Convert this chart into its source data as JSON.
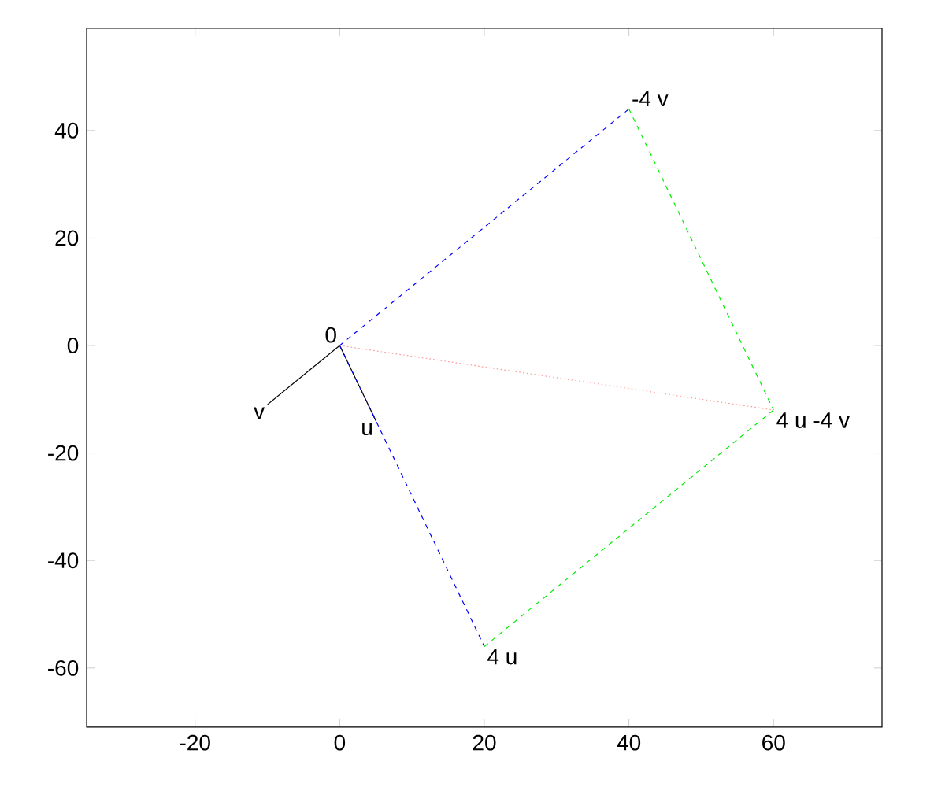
{
  "chart_data": {
    "type": "line",
    "series": [
      {
        "color": "#000000",
        "x": [
          0,
          5
        ],
        "values": [
          0,
          -14
        ],
        "line_style": "solid"
      },
      {
        "color": "#000000",
        "x": [
          0,
          -10
        ],
        "values": [
          0,
          -11
        ],
        "line_style": "solid"
      },
      {
        "color": "#0000ff",
        "x": [
          0,
          20
        ],
        "values": [
          0,
          -56
        ],
        "line_style": "dashed"
      },
      {
        "color": "#0000ff",
        "x": [
          0,
          40
        ],
        "values": [
          0,
          44
        ],
        "line_style": "dashed"
      },
      {
        "color": "#00ee00",
        "x": [
          20,
          60
        ],
        "values": [
          -56,
          -12
        ],
        "line_style": "dashed"
      },
      {
        "color": "#00ee00",
        "x": [
          40,
          60
        ],
        "values": [
          44,
          -12
        ],
        "line_style": "dashed"
      },
      {
        "color": "#ff9999",
        "x": [
          0,
          60
        ],
        "values": [
          0,
          -12
        ],
        "line_style": "dotted"
      }
    ],
    "annotations": [
      {
        "text": "0",
        "x": 0,
        "y": 0
      },
      {
        "text": "v",
        "x": -10,
        "y": -11
      },
      {
        "text": "u",
        "x": 5,
        "y": -14
      },
      {
        "text": "4 u",
        "x": 20,
        "y": -56
      },
      {
        "text": "-4 v",
        "x": 40,
        "y": 44
      },
      {
        "text": "4 u -4 v",
        "x": 60,
        "y": -12
      }
    ],
    "xlim": [
      -35,
      75
    ],
    "ylim": [
      -71,
      59
    ],
    "xticks": [
      -20,
      0,
      20,
      40,
      60
    ],
    "yticks": [
      -60,
      -40,
      -20,
      0,
      20,
      40
    ],
    "grid": false
  }
}
